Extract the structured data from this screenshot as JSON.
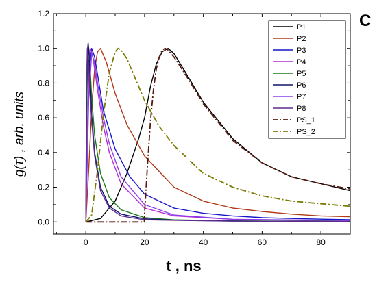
{
  "panel_label": "C",
  "colors": {
    "P1": "#000000",
    "P2": "#b0391a",
    "P3": "#1616c8",
    "P4": "#b42bd6",
    "P5": "#1a7a1a",
    "P6": "#12126e",
    "P7": "#8a3ee8",
    "P8": "#5b2d8e",
    "PS_1": "#5a1a10",
    "PS_2": "#7a7a00"
  },
  "chart_data": {
    "type": "line",
    "xlabel": "t , ns",
    "ylabel": "g(τ) , arb. units",
    "xlim": [
      -11,
      90
    ],
    "ylim": [
      -0.07,
      1.2
    ],
    "xticks": [
      0,
      20,
      40,
      60,
      80
    ],
    "yticks": [
      0.0,
      0.2,
      0.4,
      0.6,
      0.8,
      1.0,
      1.2
    ],
    "xtick_labels": [
      "0",
      "20",
      "40",
      "60",
      "80"
    ],
    "ytick_labels": [
      "0.0",
      "0.2",
      "0.4",
      "0.6",
      "0.8",
      "1.0",
      "1.2"
    ],
    "grid": false,
    "legend_position": "top-right",
    "series": [
      {
        "name": "P1",
        "style": "solid",
        "x": [
          0,
          5,
          10,
          14,
          18,
          20,
          22,
          24,
          26,
          28,
          30,
          34,
          40,
          50,
          60,
          70,
          80,
          90
        ],
        "y": [
          0.0,
          0.02,
          0.12,
          0.28,
          0.48,
          0.6,
          0.78,
          0.91,
          0.98,
          1.0,
          0.97,
          0.86,
          0.69,
          0.48,
          0.34,
          0.26,
          0.22,
          0.18
        ]
      },
      {
        "name": "P2",
        "style": "solid",
        "x": [
          0,
          1,
          2,
          3,
          4,
          5,
          7,
          10,
          14,
          20,
          30,
          40,
          50,
          60,
          70,
          80,
          90
        ],
        "y": [
          0.0,
          0.3,
          0.65,
          0.88,
          0.98,
          1.0,
          0.92,
          0.74,
          0.56,
          0.38,
          0.2,
          0.12,
          0.08,
          0.06,
          0.045,
          0.035,
          0.03
        ]
      },
      {
        "name": "P3",
        "style": "solid",
        "x": [
          0,
          0.5,
          1,
          2,
          3,
          4,
          6,
          10,
          15,
          20,
          30,
          40,
          50,
          60,
          70,
          80,
          90
        ],
        "y": [
          0.0,
          0.45,
          0.85,
          1.0,
          0.95,
          0.85,
          0.64,
          0.42,
          0.26,
          0.16,
          0.08,
          0.05,
          0.035,
          0.025,
          0.02,
          0.016,
          0.013
        ]
      },
      {
        "name": "P4",
        "style": "solid",
        "x": [
          0,
          0.5,
          1,
          1.5,
          2,
          2.5,
          3,
          4,
          6,
          8,
          12,
          20,
          30,
          50,
          70,
          90
        ],
        "y": [
          0.0,
          0.5,
          0.85,
          1.0,
          0.98,
          0.94,
          0.88,
          0.76,
          0.55,
          0.4,
          0.22,
          0.08,
          0.035,
          0.015,
          0.01,
          0.008
        ]
      },
      {
        "name": "P5",
        "style": "solid",
        "x": [
          0,
          0.3,
          0.6,
          1,
          1.5,
          2,
          3,
          5,
          8,
          12,
          20,
          30,
          50,
          90
        ],
        "y": [
          0.0,
          0.6,
          0.95,
          1.0,
          0.88,
          0.72,
          0.5,
          0.28,
          0.14,
          0.07,
          0.025,
          0.012,
          0.006,
          0.003
        ]
      },
      {
        "name": "P6",
        "style": "solid",
        "x": [
          0,
          0.2,
          0.5,
          0.8,
          1,
          1.5,
          2,
          3,
          5,
          8,
          12,
          20,
          30,
          50,
          90
        ],
        "y": [
          0.0,
          0.6,
          0.98,
          1.03,
          1.0,
          0.8,
          0.62,
          0.4,
          0.2,
          0.09,
          0.045,
          0.018,
          0.01,
          0.005,
          0.002
        ]
      },
      {
        "name": "P7",
        "style": "solid",
        "x": [
          0,
          0.5,
          1,
          2,
          3,
          4,
          6,
          8,
          12,
          20,
          30,
          50,
          90
        ],
        "y": [
          0.0,
          0.35,
          0.7,
          0.97,
          0.92,
          0.8,
          0.6,
          0.45,
          0.26,
          0.1,
          0.04,
          0.015,
          0.008
        ]
      },
      {
        "name": "P8",
        "style": "solid",
        "x": [
          0,
          0.2,
          0.5,
          1,
          1.5,
          2,
          3,
          5,
          8,
          12,
          20,
          50,
          90
        ],
        "y": [
          0.0,
          0.7,
          1.0,
          0.9,
          0.72,
          0.58,
          0.38,
          0.18,
          0.08,
          0.035,
          0.012,
          0.004,
          0.002
        ]
      },
      {
        "name": "PS_1",
        "style": "dashdot",
        "x": [
          0,
          19.9,
          20,
          21,
          22,
          23,
          24,
          25,
          26,
          27,
          28,
          30,
          32,
          35,
          40,
          50,
          60,
          70,
          80,
          90
        ],
        "y": [
          0.0,
          0.0,
          0.05,
          0.33,
          0.58,
          0.76,
          0.88,
          0.95,
          0.99,
          1.0,
          0.99,
          0.95,
          0.9,
          0.82,
          0.68,
          0.47,
          0.34,
          0.26,
          0.22,
          0.19
        ]
      },
      {
        "name": "PS_2",
        "style": "dashdot",
        "x": [
          0,
          2,
          4,
          6,
          8,
          10,
          11,
          12,
          14,
          16,
          20,
          25,
          30,
          40,
          50,
          60,
          70,
          80,
          90
        ],
        "y": [
          0.0,
          0.04,
          0.3,
          0.62,
          0.86,
          0.98,
          1.0,
          0.99,
          0.94,
          0.86,
          0.7,
          0.55,
          0.44,
          0.28,
          0.2,
          0.15,
          0.12,
          0.105,
          0.09
        ]
      }
    ]
  }
}
